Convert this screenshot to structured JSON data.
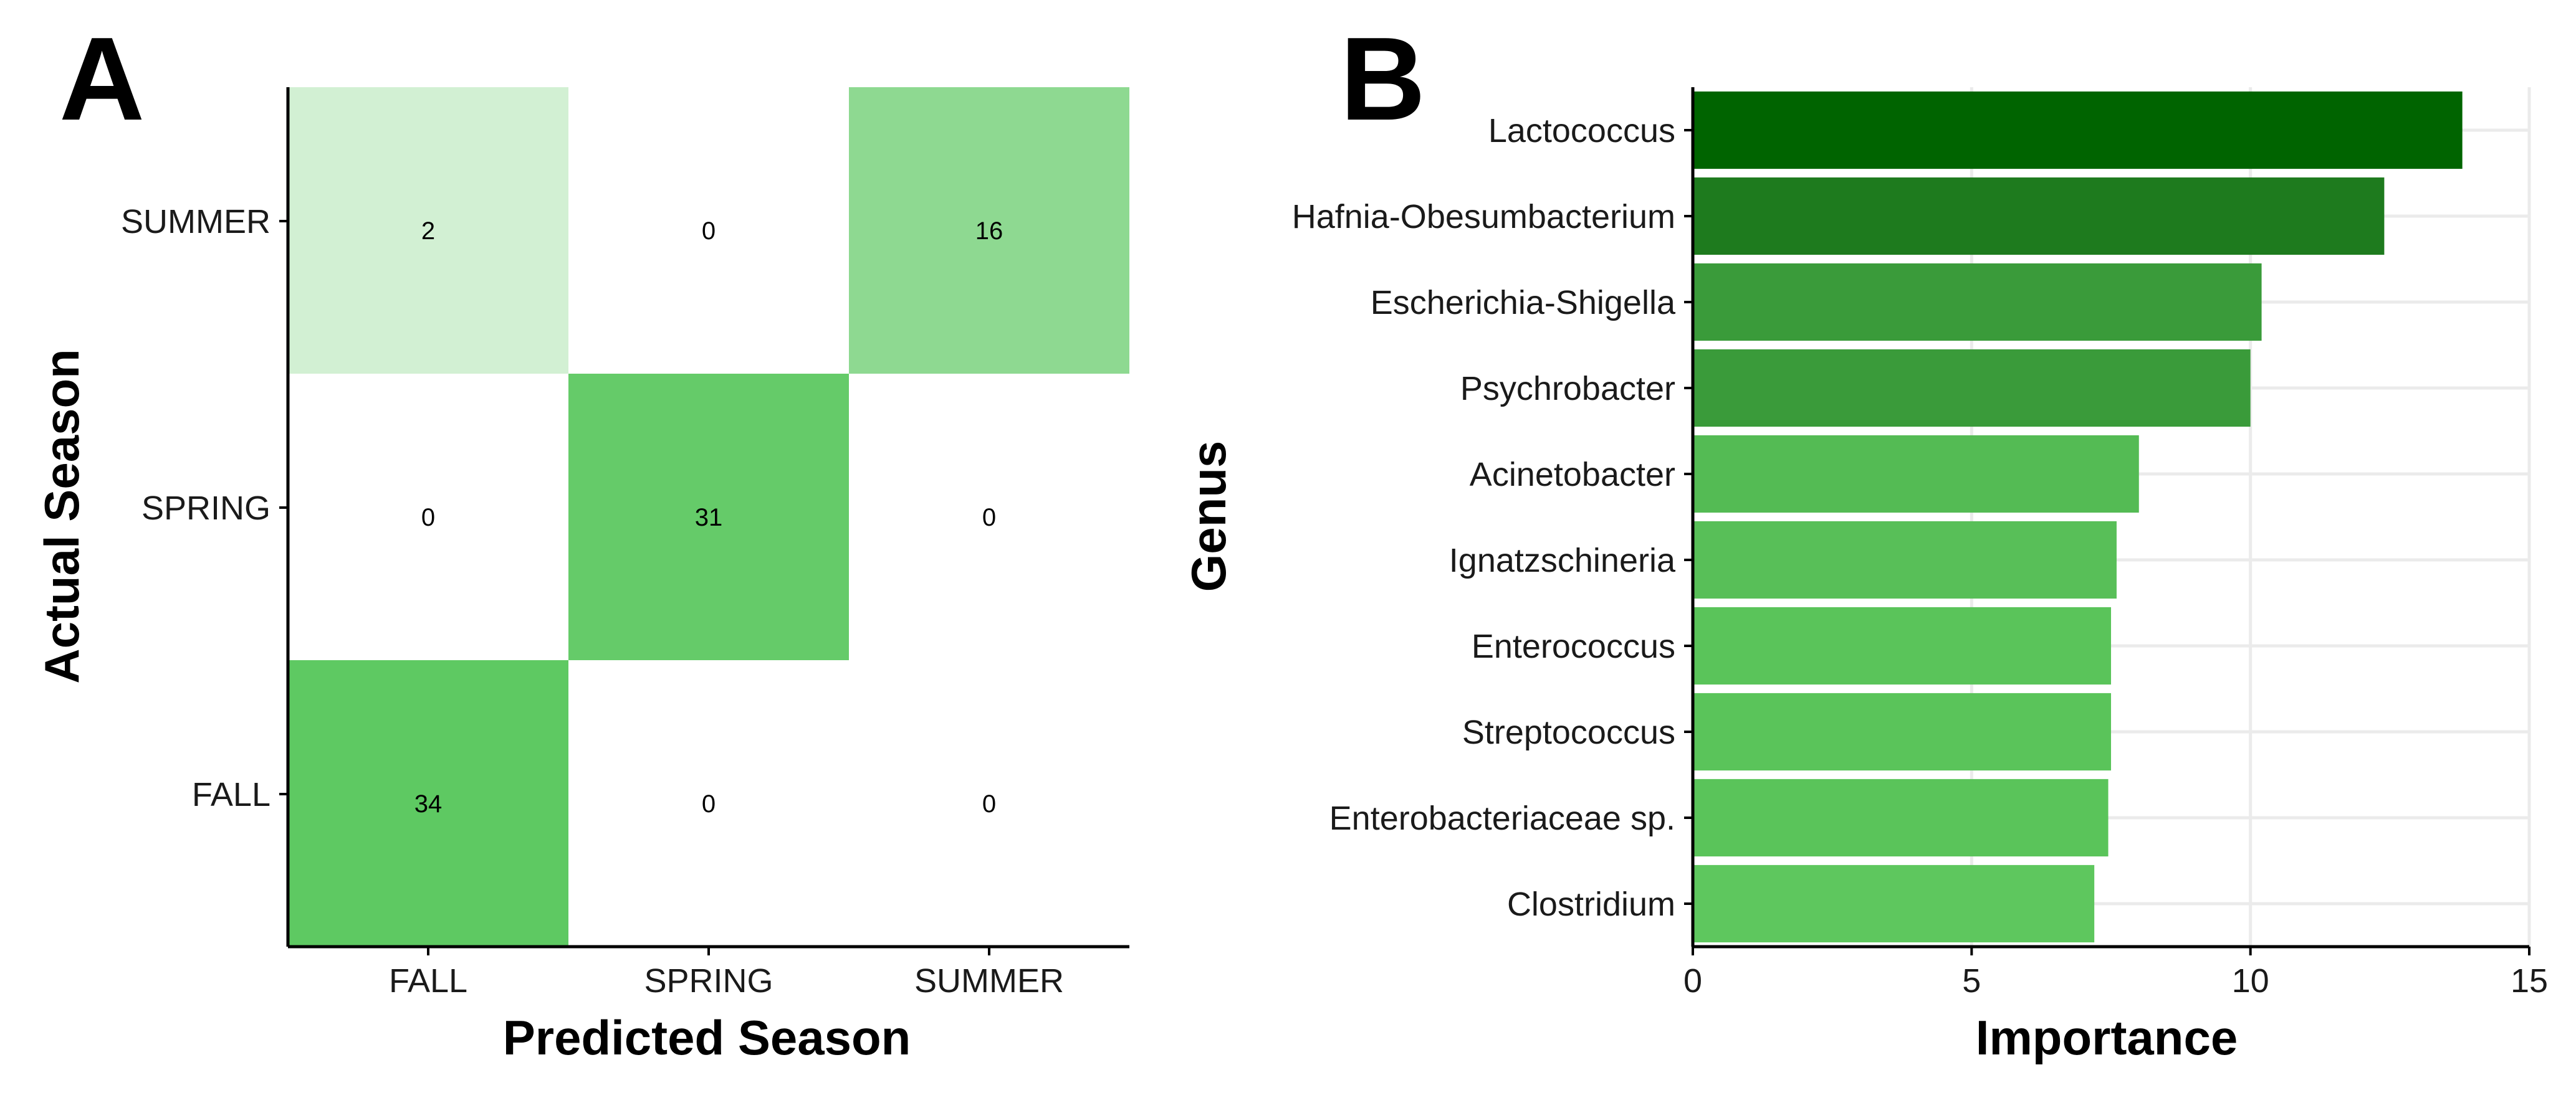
{
  "figure": {
    "panel_a_letter": "A",
    "panel_b_letter": "B"
  },
  "chart_data": [
    {
      "type": "heatmap",
      "title": "",
      "xlabel": "Predicted Season",
      "ylabel": "Actual Season",
      "x_categories": [
        "FALL",
        "SPRING",
        "SUMMER"
      ],
      "y_categories": [
        "SUMMER",
        "SPRING",
        "FALL"
      ],
      "cells": [
        {
          "actual": "SUMMER",
          "predicted": "FALL",
          "value": 2
        },
        {
          "actual": "SUMMER",
          "predicted": "SPRING",
          "value": 0
        },
        {
          "actual": "SUMMER",
          "predicted": "SUMMER",
          "value": 16
        },
        {
          "actual": "SPRING",
          "predicted": "FALL",
          "value": 0
        },
        {
          "actual": "SPRING",
          "predicted": "SPRING",
          "value": 31
        },
        {
          "actual": "SPRING",
          "predicted": "SUMMER",
          "value": 0
        },
        {
          "actual": "FALL",
          "predicted": "FALL",
          "value": 34
        },
        {
          "actual": "FALL",
          "predicted": "SPRING",
          "value": 0
        },
        {
          "actual": "FALL",
          "predicted": "SUMMER",
          "value": 0
        }
      ],
      "color_low": "#ffffff",
      "color_high": "#5ec962",
      "grid": false
    },
    {
      "type": "bar",
      "orientation": "horizontal",
      "title": "",
      "xlabel": "Importance",
      "ylabel": "Genus",
      "categories": [
        "Lactococcus",
        "Hafnia-Obesumbacterium",
        "Escherichia-Shigella",
        "Psychrobacter",
        "Acinetobacter",
        "Ignatzschineria",
        "Enterococcus",
        "Streptococcus",
        "Enterobacteriaceae sp.",
        "Clostridium"
      ],
      "values": [
        13.8,
        12.4,
        10.2,
        10.0,
        8.0,
        7.6,
        7.5,
        7.5,
        7.45,
        7.2
      ],
      "colors": [
        "#006400",
        "#1e7b1e",
        "#3a9b3a",
        "#3a9b3a",
        "#54bb54",
        "#58bf58",
        "#5ac45a",
        "#5ac45a",
        "#5ac45a",
        "#5ec75e"
      ],
      "xlim": [
        0,
        15
      ],
      "xticks": [
        0,
        5,
        10,
        15
      ],
      "grid": true
    }
  ]
}
